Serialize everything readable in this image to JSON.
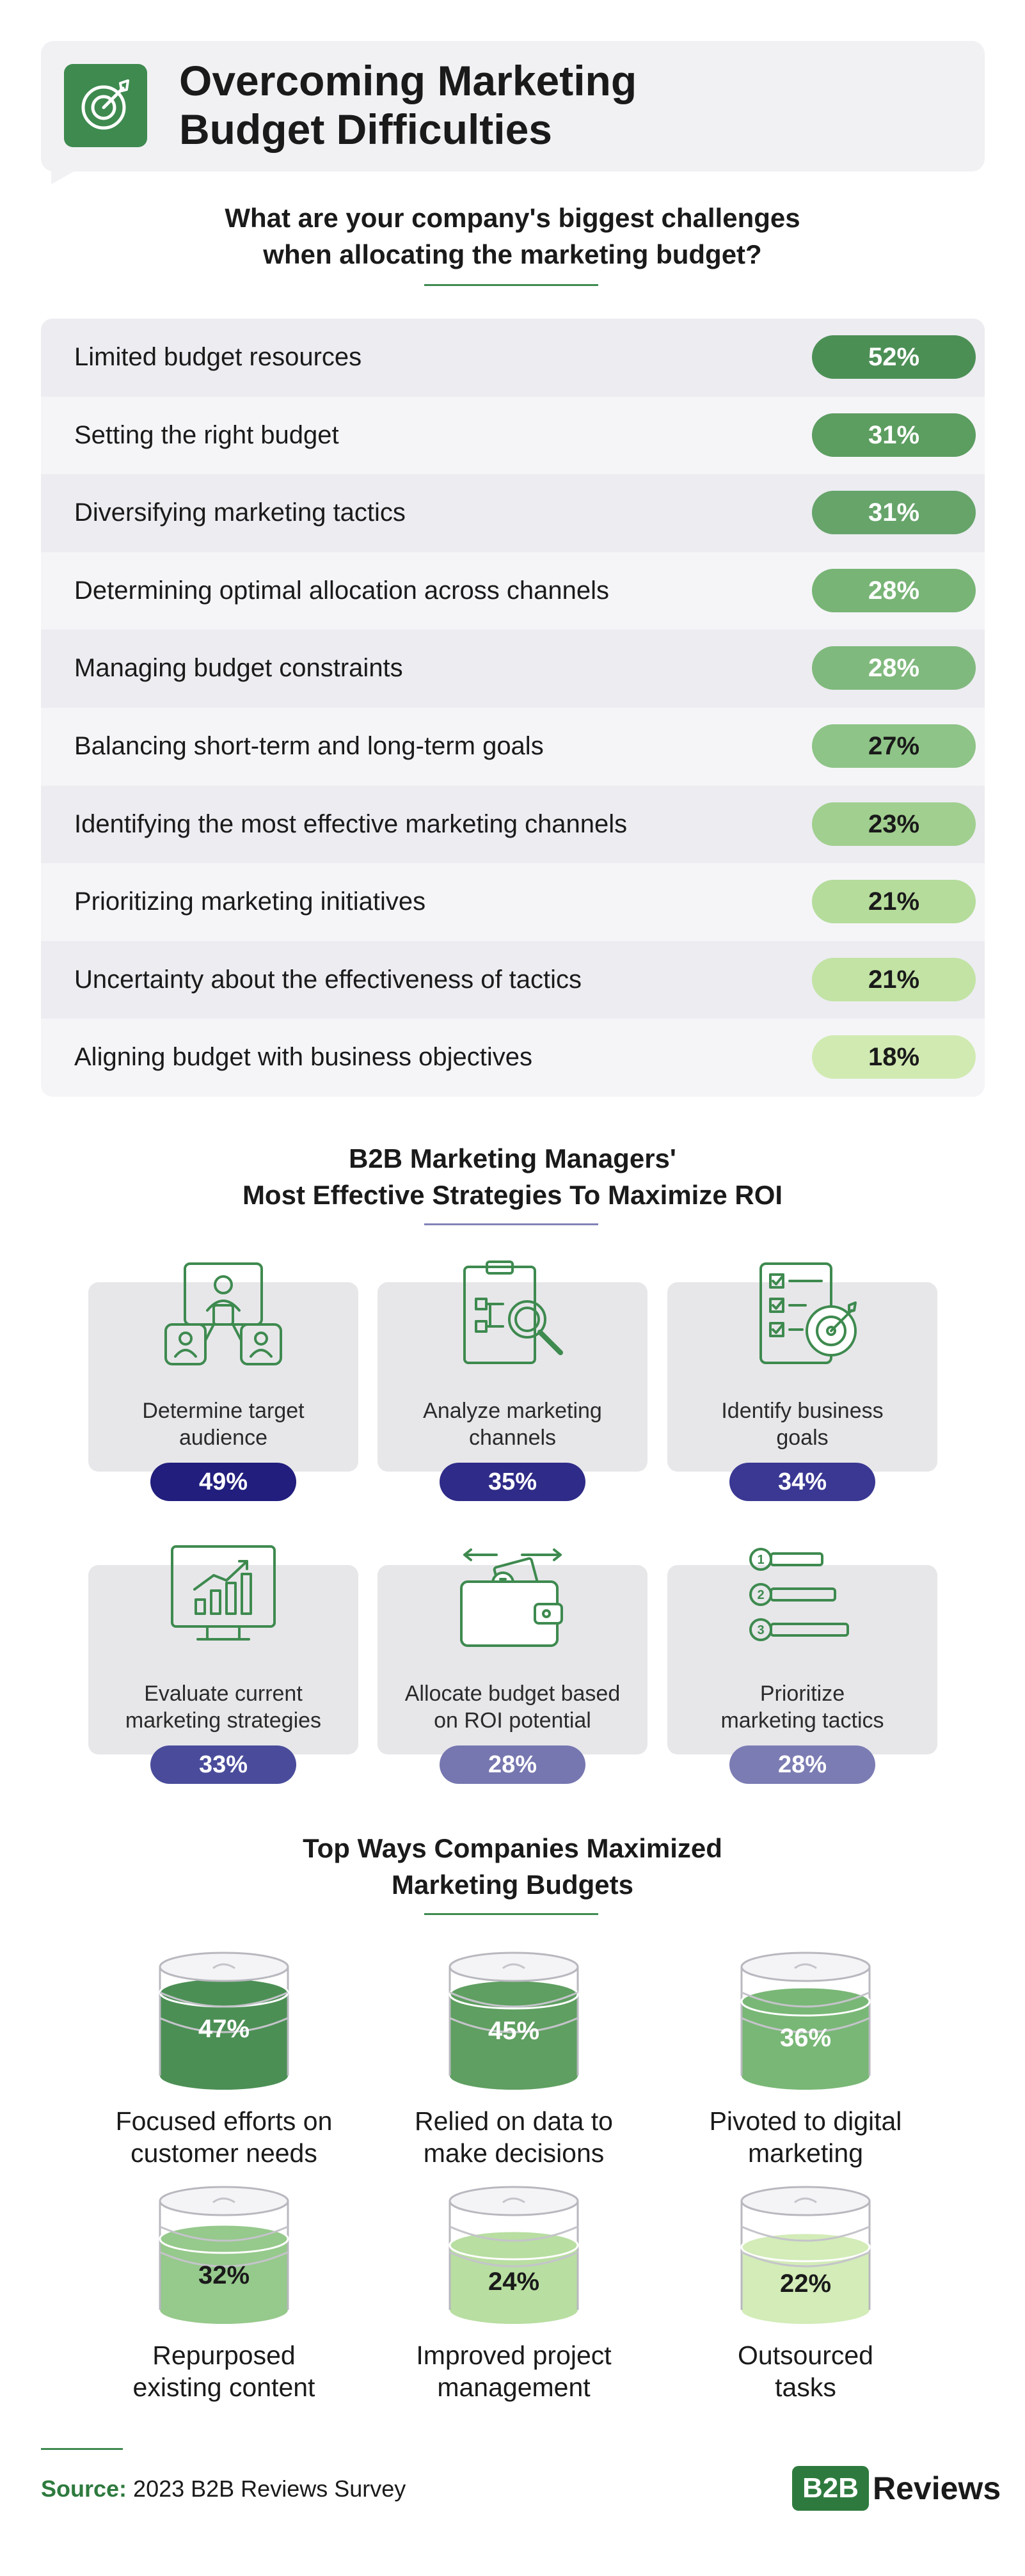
{
  "header": {
    "title": "Overcoming Marketing\nBudget Difficulties"
  },
  "section1": {
    "question": "What are your company's biggest challenges\nwhen allocating the marketing budget?"
  },
  "section2": {
    "title": "B2B Marketing Managers'\nMost Effective Strategies To Maximize ROI"
  },
  "section3": {
    "title": "Top Ways Companies Maximized\nMarketing Budgets"
  },
  "footer": {
    "source_label": "Source:",
    "source_text": " 2023 B2B Reviews Survey",
    "logo_box": "B2B",
    "logo_text": "Reviews"
  },
  "colors": {
    "green_dark": "#3e8a4f",
    "pills": [
      "#4c8f55",
      "#5c9d60",
      "#66a46a",
      "#78b476",
      "#80b97d",
      "#8ec487",
      "#a1cf8f",
      "#b5dc9b",
      "#c2e3a4",
      "#d1eab2"
    ],
    "indigo": [
      "#211e7e",
      "#2f2b88",
      "#3a3893",
      "#4a4c9b",
      "#7676b0",
      "#7c7cb4"
    ],
    "stack_fill": [
      "#4c8f55",
      "#5f9f61",
      "#79b776",
      "#96c98c",
      "#b8dea1",
      "#d3ecb8"
    ]
  },
  "chart_data": [
    {
      "type": "bar",
      "title": "What are your company's biggest challenges when allocating the marketing budget?",
      "categories": [
        "Limited budget resources",
        "Setting the right budget",
        "Diversifying marketing tactics",
        "Determining optimal allocation across channels",
        "Managing budget constraints",
        "Balancing short-term and long-term goals",
        "Identifying the most effective marketing channels",
        "Prioritizing marketing initiatives",
        "Uncertainty about the effectiveness of tactics",
        "Aligning budget with business objectives"
      ],
      "values": [
        52,
        31,
        31,
        28,
        28,
        27,
        23,
        21,
        21,
        18
      ],
      "labels": [
        "52%",
        "31%",
        "31%",
        "28%",
        "28%",
        "27%",
        "23%",
        "21%",
        "21%",
        "18%"
      ]
    },
    {
      "type": "bar",
      "title": "B2B Marketing Managers' Most Effective Strategies To Maximize ROI",
      "categories": [
        "Determine target\naudience",
        "Analyze marketing\nchannels",
        "Identify business\ngoals",
        "Evaluate current\nmarketing strategies",
        "Allocate budget based\non ROI potential",
        "Prioritize\nmarketing tactics"
      ],
      "values": [
        49,
        35,
        34,
        33,
        28,
        28
      ],
      "labels": [
        "49%",
        "35%",
        "34%",
        "33%",
        "28%",
        "28%"
      ],
      "icons": [
        "audience-icon",
        "analyze-channels-icon",
        "business-goals-icon",
        "evaluate-strategies-icon",
        "budget-wallet-icon",
        "prioritize-list-icon"
      ]
    },
    {
      "type": "bar",
      "title": "Top Ways Companies Maximized Marketing Budgets",
      "categories": [
        "Focused efforts on\ncustomer needs",
        "Relied on data to\nmake decisions",
        "Pivoted to digital\nmarketing",
        "Repurposed\nexisting content",
        "Improved project\nmanagement",
        "Outsourced\ntasks"
      ],
      "values": [
        47,
        45,
        36,
        32,
        24,
        22
      ],
      "labels": [
        "47%",
        "45%",
        "36%",
        "32%",
        "24%",
        "22%"
      ],
      "icons": [
        "coin-stack-icon",
        "coin-stack-icon",
        "coin-stack-icon",
        "coin-stack-icon",
        "coin-stack-icon",
        "coin-stack-icon"
      ]
    }
  ]
}
